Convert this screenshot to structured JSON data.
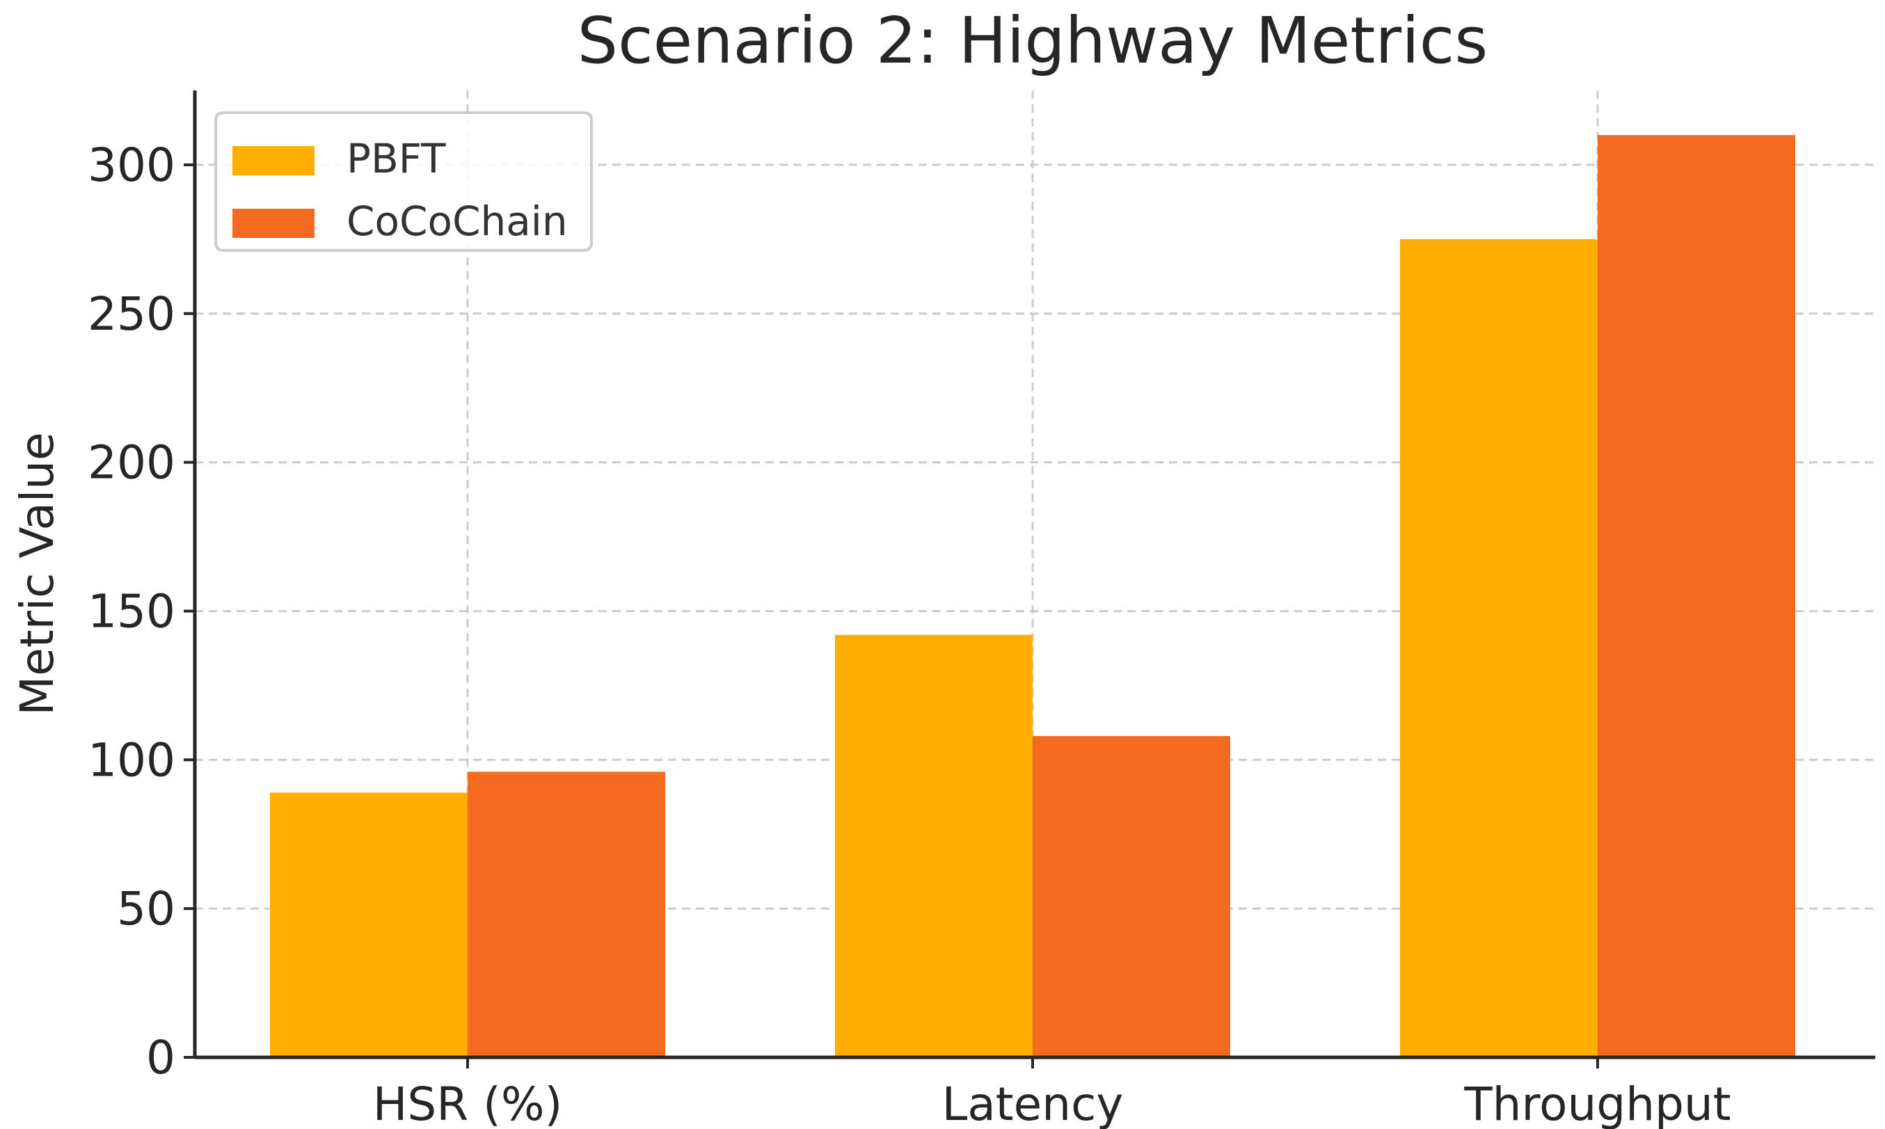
{
  "chart_data": {
    "type": "bar",
    "title": "Scenario 2: Highway Metrics",
    "xlabel": "",
    "ylabel": "Metric Value",
    "categories": [
      "HSR (%)",
      "Latency",
      "Throughput"
    ],
    "series": [
      {
        "name": "PBFT",
        "values": [
          89,
          142,
          275
        ],
        "color": "#FFAE00"
      },
      {
        "name": "CoCoChain",
        "values": [
          96,
          108,
          310
        ],
        "color": "#F46A21"
      }
    ],
    "ylim": [
      0,
      325
    ],
    "yticks": [
      0,
      50,
      100,
      150,
      200,
      250,
      300
    ],
    "grid": true,
    "legend_position": "top-left"
  }
}
